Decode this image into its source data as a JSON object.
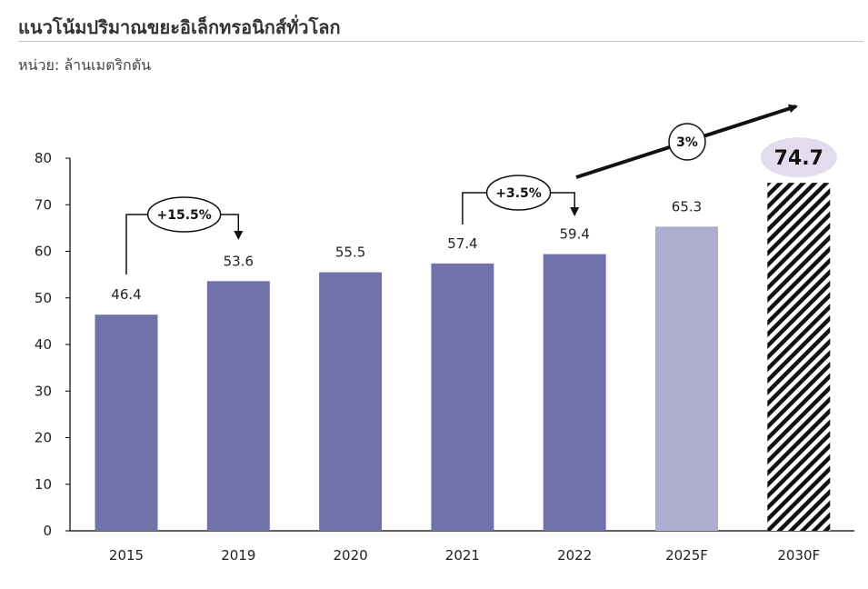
{
  "title": "แนวโน้มปริมาณขยะอิเล็กทรอนิกส์ทั่วโลก",
  "subtitle": "หน่วย: ล้านเมตริกตัน",
  "colors": {
    "bar_actual": "#7272aa",
    "bar_forecast": "#adadd0",
    "bar_highlight_pattern": "#111111",
    "highlight_badge": "#e3dcef"
  },
  "chart_data": {
    "type": "bar",
    "categories": [
      "2015",
      "2019",
      "2020",
      "2021",
      "2022",
      "2025F",
      "2030F"
    ],
    "values": [
      46.4,
      53.6,
      55.5,
      57.4,
      59.4,
      65.3,
      74.7
    ],
    "value_labels": [
      "46.4",
      "53.6",
      "55.5",
      "57.4",
      "59.4",
      "65.3",
      "74.7"
    ],
    "bar_styles": [
      "actual",
      "actual",
      "actual",
      "actual",
      "actual",
      "forecast",
      "hatched"
    ],
    "ylim": [
      0,
      80
    ],
    "yticks": [
      "0",
      "10",
      "20",
      "30",
      "40",
      "50",
      "60",
      "70",
      "80"
    ],
    "grid": false,
    "annotations": [
      {
        "label": "+15.5%",
        "from": "2015",
        "to": "2019"
      },
      {
        "label": "+3.5%",
        "from": "2021",
        "to": "2022"
      },
      {
        "label": "3%",
        "from": "2022",
        "to": "2030F"
      }
    ]
  }
}
